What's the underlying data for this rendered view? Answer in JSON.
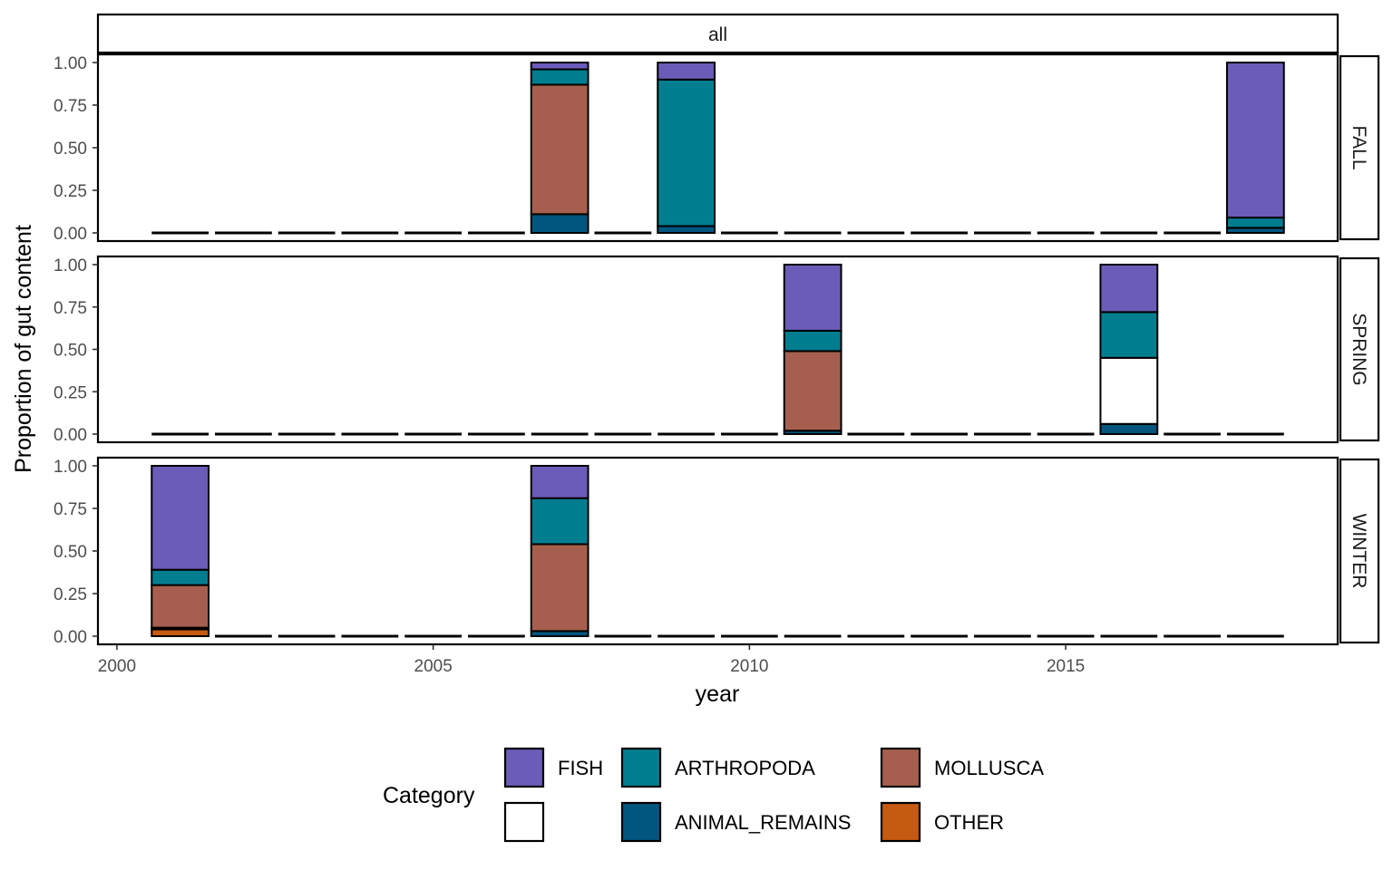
{
  "chart_data": {
    "type": "bar",
    "stacked": true,
    "facet_column_label": "all",
    "xlabel": "year",
    "ylabel": "Proportion of gut content",
    "xlim": [
      1999.7,
      2019.3
    ],
    "ylim": [
      0,
      1
    ],
    "x_ticks": [
      2000,
      2005,
      2010,
      2015
    ],
    "y_ticks": [
      "0.00",
      "0.25",
      "0.50",
      "0.75",
      "1.00"
    ],
    "years": [
      2001,
      2002,
      2003,
      2004,
      2005,
      2006,
      2007,
      2008,
      2009,
      2010,
      2011,
      2012,
      2013,
      2014,
      2015,
      2016,
      2017,
      2018
    ],
    "legend": {
      "title": "Category",
      "position": "bottom",
      "entries": [
        {
          "key": "FISH",
          "label": "FISH",
          "color": "#6a5cb8"
        },
        {
          "key": "ARTHROPODA",
          "label": "ARTHROPODA",
          "color": "#007e90"
        },
        {
          "key": "MOLLUSCA",
          "label": "MOLLUSCA",
          "color": "#a65f4e"
        },
        {
          "key": "BLANK",
          "label": "",
          "color": "#ffffff"
        },
        {
          "key": "ANIMAL_REMAINS",
          "label": "ANIMAL_REMAINS",
          "color": "#00567f"
        },
        {
          "key": "OTHER",
          "label": "OTHER",
          "color": "#c55a11"
        }
      ]
    },
    "stack_order_bottom_to_top": [
      "OTHER",
      "ANIMAL_REMAINS",
      "BLANK",
      "MOLLUSCA",
      "ARTHROPODA",
      "FISH"
    ],
    "panels": [
      {
        "label": "FALL",
        "bars": [
          {
            "year": 2007,
            "values": {
              "OTHER": 0.0,
              "ANIMAL_REMAINS": 0.11,
              "BLANK": 0.0,
              "MOLLUSCA": 0.76,
              "ARTHROPODA": 0.09,
              "FISH": 0.04
            }
          },
          {
            "year": 2009,
            "values": {
              "OTHER": 0.0,
              "ANIMAL_REMAINS": 0.04,
              "BLANK": 0.0,
              "MOLLUSCA": 0.0,
              "ARTHROPODA": 0.86,
              "FISH": 0.1
            }
          },
          {
            "year": 2018,
            "values": {
              "OTHER": 0.0,
              "ANIMAL_REMAINS": 0.03,
              "BLANK": 0.0,
              "MOLLUSCA": 0.0,
              "ARTHROPODA": 0.06,
              "FISH": 0.91
            }
          }
        ]
      },
      {
        "label": "SPRING",
        "bars": [
          {
            "year": 2011,
            "values": {
              "OTHER": 0.0,
              "ANIMAL_REMAINS": 0.02,
              "BLANK": 0.0,
              "MOLLUSCA": 0.47,
              "ARTHROPODA": 0.12,
              "FISH": 0.39
            }
          },
          {
            "year": 2016,
            "values": {
              "OTHER": 0.0,
              "ANIMAL_REMAINS": 0.06,
              "BLANK": 0.39,
              "MOLLUSCA": 0.0,
              "ARTHROPODA": 0.27,
              "FISH": 0.28
            }
          }
        ]
      },
      {
        "label": "WINTER",
        "bars": [
          {
            "year": 2001,
            "values": {
              "OTHER": 0.04,
              "ANIMAL_REMAINS": 0.01,
              "BLANK": 0.0,
              "MOLLUSCA": 0.25,
              "ARTHROPODA": 0.09,
              "FISH": 0.61
            }
          },
          {
            "year": 2007,
            "values": {
              "OTHER": 0.0,
              "ANIMAL_REMAINS": 0.03,
              "BLANK": 0.0,
              "MOLLUSCA": 0.51,
              "ARTHROPODA": 0.27,
              "FISH": 0.19
            }
          }
        ]
      }
    ]
  }
}
